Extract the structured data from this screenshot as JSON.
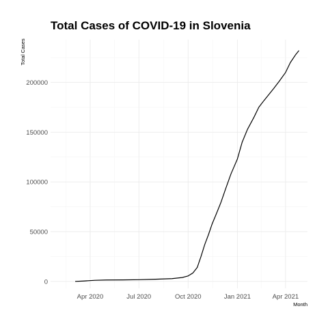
{
  "chart_data": {
    "type": "line",
    "title": "Total Cases of COVID-19 in Slovenia",
    "xlabel": "Month",
    "ylabel": "Total Cases",
    "xlim": [
      "2020-01-18",
      "2021-05-12"
    ],
    "ylim": [
      -7000,
      243000
    ],
    "x_ticks": [
      {
        "date": "2020-04-01",
        "label": "Apr 2020"
      },
      {
        "date": "2020-07-01",
        "label": "Jul 2020"
      },
      {
        "date": "2020-10-01",
        "label": "Oct 2020"
      },
      {
        "date": "2021-01-01",
        "label": "Jan 2021"
      },
      {
        "date": "2021-04-01",
        "label": "Apr 2021"
      }
    ],
    "y_ticks": [
      {
        "value": 0,
        "label": "0"
      },
      {
        "value": 50000,
        "label": "50000"
      },
      {
        "value": 100000,
        "label": "100000"
      },
      {
        "value": 150000,
        "label": "150000"
      },
      {
        "value": 200000,
        "label": "200000"
      }
    ],
    "grid": true,
    "legend": "none",
    "series": [
      {
        "color": "#000000",
        "points": [
          [
            "2020-03-04",
            0
          ],
          [
            "2020-03-20",
            400
          ],
          [
            "2020-04-10",
            1100
          ],
          [
            "2020-05-01",
            1400
          ],
          [
            "2020-06-01",
            1480
          ],
          [
            "2020-07-01",
            1700
          ],
          [
            "2020-08-01",
            2200
          ],
          [
            "2020-09-01",
            2800
          ],
          [
            "2020-09-20",
            3900
          ],
          [
            "2020-10-01",
            5500
          ],
          [
            "2020-10-10",
            8500
          ],
          [
            "2020-10-18",
            14000
          ],
          [
            "2020-10-25",
            25000
          ],
          [
            "2020-11-01",
            37000
          ],
          [
            "2020-11-08",
            47000
          ],
          [
            "2020-11-15",
            58000
          ],
          [
            "2020-11-22",
            67000
          ],
          [
            "2020-12-01",
            79000
          ],
          [
            "2020-12-10",
            93000
          ],
          [
            "2020-12-20",
            108000
          ],
          [
            "2021-01-01",
            123000
          ],
          [
            "2021-01-10",
            140000
          ],
          [
            "2021-01-20",
            153000
          ],
          [
            "2021-02-01",
            165000
          ],
          [
            "2021-02-10",
            175000
          ],
          [
            "2021-02-20",
            182000
          ],
          [
            "2021-03-01",
            188000
          ],
          [
            "2021-03-10",
            194000
          ],
          [
            "2021-03-20",
            201000
          ],
          [
            "2021-04-01",
            210000
          ],
          [
            "2021-04-10",
            220000
          ],
          [
            "2021-04-20",
            228000
          ],
          [
            "2021-04-26",
            232000
          ]
        ]
      }
    ]
  }
}
